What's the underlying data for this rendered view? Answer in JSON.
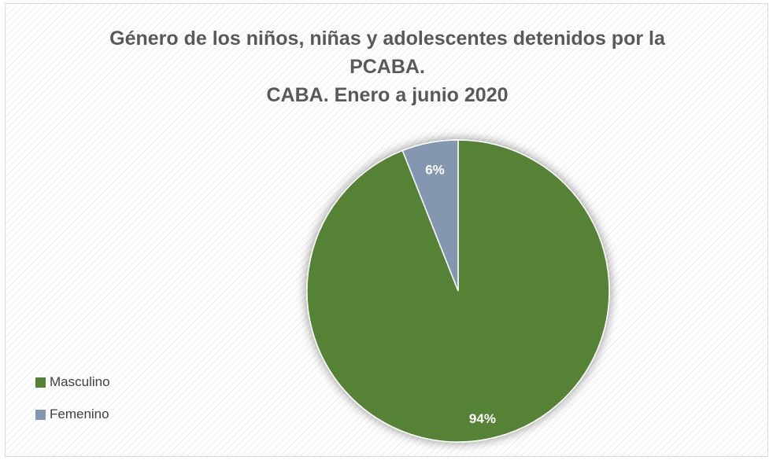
{
  "chart_data": {
    "type": "pie",
    "title_lines": [
      "Género de los niños, niñas y adolescentes detenidos por la",
      "PCABA.",
      "CABA. Enero a junio 2020"
    ],
    "slices": [
      {
        "label": "Masculino",
        "value": 94,
        "display": "94%",
        "color": "#548235"
      },
      {
        "label": "Femenino",
        "value": 6,
        "display": "6%",
        "color": "#8497b0"
      }
    ],
    "legend_position": "left-bottom",
    "start_angle_deg": 0,
    "direction": "clockwise"
  }
}
